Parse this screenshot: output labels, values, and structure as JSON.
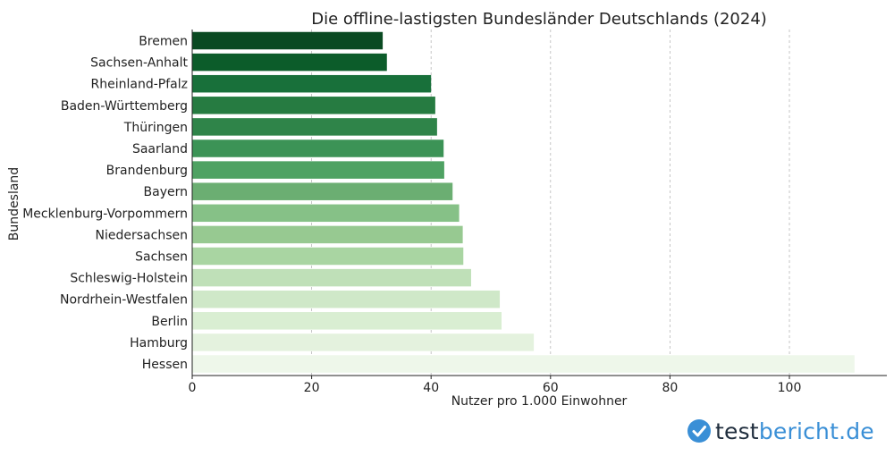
{
  "chart_data": {
    "type": "bar",
    "orientation": "horizontal",
    "title": "Die offline-lastigsten Bundesländer Deutschlands (2024)",
    "xlabel": "Nutzer pro 1.000 Einwohner",
    "ylabel": "Bundesland",
    "xlim": [
      0,
      116
    ],
    "xticks": [
      0,
      20,
      40,
      60,
      80,
      100
    ],
    "grid": "x",
    "categories": [
      "Bremen",
      "Sachsen-Anhalt",
      "Rheinland-Pfalz",
      "Baden-Württemberg",
      "Thüringen",
      "Saarland",
      "Brandenburg",
      "Bayern",
      "Mecklenburg-Vorpommern",
      "Niedersachsen",
      "Sachsen",
      "Schleswig-Holstein",
      "Nordrhein-Westfalen",
      "Berlin",
      "Hamburg",
      "Hessen"
    ],
    "values": [
      31.9,
      32.6,
      40.0,
      40.7,
      41.0,
      42.1,
      42.2,
      43.6,
      44.7,
      45.3,
      45.4,
      46.7,
      51.5,
      51.8,
      57.2,
      110.9
    ],
    "colors": [
      "#0a4a22",
      "#0c5c2a",
      "#18703a",
      "#267b41",
      "#2f8449",
      "#3c9356",
      "#4fa263",
      "#6bae72",
      "#86c187",
      "#97c991",
      "#a9d5a2",
      "#bfe0b8",
      "#cfe8c8",
      "#d9eed2",
      "#e4f2de",
      "#eef7ea"
    ]
  },
  "logo": {
    "part1": "test",
    "part2": "bericht.de",
    "icon": "checkmark-badge-icon",
    "icon_color": "#3a8fd6"
  }
}
